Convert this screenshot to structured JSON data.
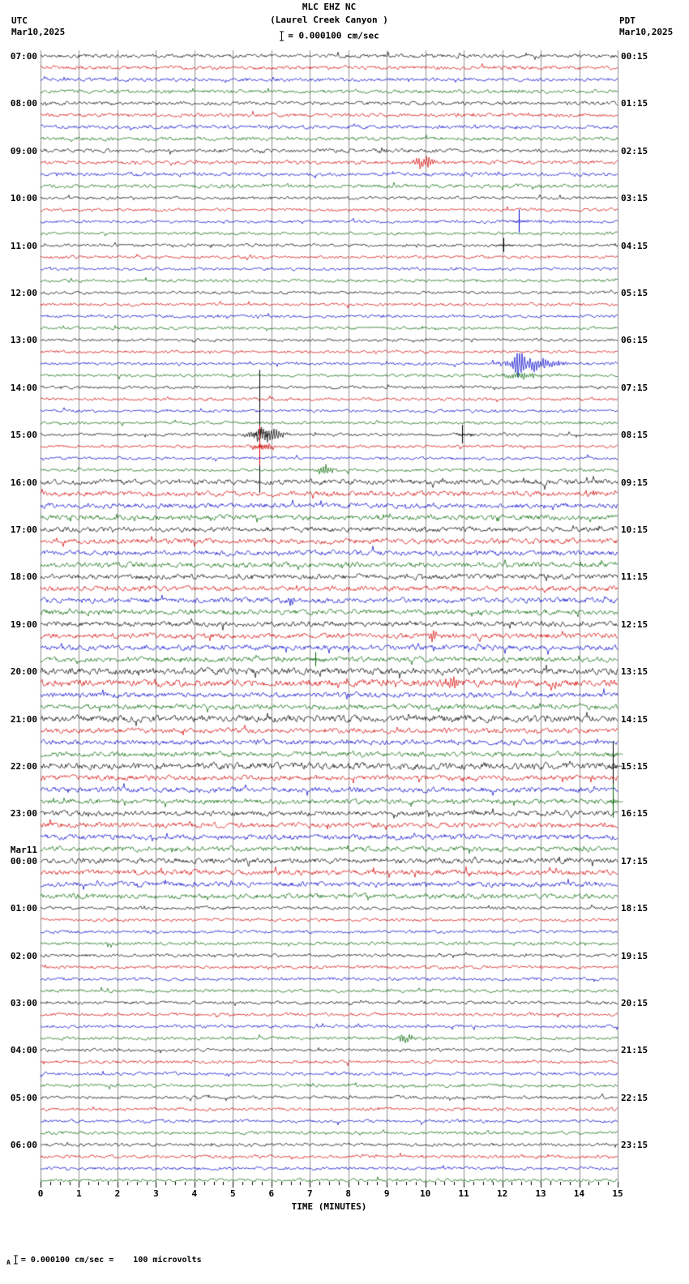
{
  "header": {
    "title": "MLC EHZ NC",
    "subtitle": "(Laurel Creek Canyon )",
    "scale_label": "= 0.000100 cm/sec",
    "left_tz": "UTC",
    "left_date": "Mar10,2025",
    "right_tz": "PDT",
    "right_date": "Mar10,2025"
  },
  "footer": {
    "note": "= 0.000100 cm/sec =    100 microvolts"
  },
  "x_axis": {
    "label": "TIME (MINUTES)",
    "ticks": [
      "0",
      "1",
      "2",
      "3",
      "4",
      "5",
      "6",
      "7",
      "8",
      "9",
      "10",
      "11",
      "12",
      "13",
      "14",
      "15"
    ]
  },
  "chart_data": {
    "type": "line",
    "subtype": "helicorder-seismogram",
    "station": "MLC EHZ NC",
    "station_name": "Laurel Creek Canyon",
    "rows": 96,
    "minutes_per_row": 15,
    "trace_colors": [
      "#000000",
      "#d40000",
      "#0000cc",
      "#006600"
    ],
    "grid_color": "#909090",
    "left_labels": [
      {
        "row": 0,
        "text": "07:00"
      },
      {
        "row": 4,
        "text": "08:00"
      },
      {
        "row": 8,
        "text": "09:00"
      },
      {
        "row": 12,
        "text": "10:00"
      },
      {
        "row": 16,
        "text": "11:00"
      },
      {
        "row": 20,
        "text": "12:00"
      },
      {
        "row": 24,
        "text": "13:00"
      },
      {
        "row": 28,
        "text": "14:00"
      },
      {
        "row": 32,
        "text": "15:00"
      },
      {
        "row": 36,
        "text": "16:00"
      },
      {
        "row": 40,
        "text": "17:00"
      },
      {
        "row": 44,
        "text": "18:00"
      },
      {
        "row": 48,
        "text": "19:00"
      },
      {
        "row": 52,
        "text": "20:00"
      },
      {
        "row": 56,
        "text": "21:00"
      },
      {
        "row": 60,
        "text": "22:00"
      },
      {
        "row": 64,
        "text": "23:00"
      },
      {
        "row": 68,
        "text": "00:00"
      },
      {
        "row": 72,
        "text": "01:00"
      },
      {
        "row": 76,
        "text": "02:00"
      },
      {
        "row": 80,
        "text": "03:00"
      },
      {
        "row": 84,
        "text": "04:00"
      },
      {
        "row": 88,
        "text": "05:00"
      },
      {
        "row": 92,
        "text": "06:00"
      }
    ],
    "date_break": {
      "row": 68,
      "text": "Mar11"
    },
    "right_labels": [
      {
        "row": 0,
        "text": "00:15"
      },
      {
        "row": 4,
        "text": "01:15"
      },
      {
        "row": 8,
        "text": "02:15"
      },
      {
        "row": 12,
        "text": "03:15"
      },
      {
        "row": 16,
        "text": "04:15"
      },
      {
        "row": 20,
        "text": "05:15"
      },
      {
        "row": 24,
        "text": "06:15"
      },
      {
        "row": 28,
        "text": "07:15"
      },
      {
        "row": 32,
        "text": "08:15"
      },
      {
        "row": 36,
        "text": "09:15"
      },
      {
        "row": 40,
        "text": "10:15"
      },
      {
        "row": 44,
        "text": "11:15"
      },
      {
        "row": 48,
        "text": "12:15"
      },
      {
        "row": 52,
        "text": "13:15"
      },
      {
        "row": 56,
        "text": "14:15"
      },
      {
        "row": 60,
        "text": "15:15"
      },
      {
        "row": 64,
        "text": "16:15"
      },
      {
        "row": 68,
        "text": "17:15"
      },
      {
        "row": 72,
        "text": "18:15"
      },
      {
        "row": 76,
        "text": "19:15"
      },
      {
        "row": 80,
        "text": "20:15"
      },
      {
        "row": 84,
        "text": "21:15"
      },
      {
        "row": 88,
        "text": "22:15"
      },
      {
        "row": 92,
        "text": "23:15"
      }
    ],
    "events": [
      {
        "row": 8,
        "t": 8.85,
        "amp": 4,
        "w": 0.08,
        "kind": "burst"
      },
      {
        "row": 9,
        "t": 9.95,
        "amp": 9,
        "w": 0.22,
        "kind": "burst"
      },
      {
        "row": 14,
        "t": 12.43,
        "amp": 15,
        "kind": "spike"
      },
      {
        "row": 16,
        "t": 12.02,
        "amp": 9,
        "kind": "spike"
      },
      {
        "row": 26,
        "t": 12.43,
        "amp": 24,
        "w": 0.12,
        "kind": "burst"
      },
      {
        "row": 26,
        "t": 12.78,
        "amp": 9,
        "w": 0.45,
        "kind": "burst"
      },
      {
        "row": 27,
        "t": 12.5,
        "amp": 5,
        "w": 0.3,
        "kind": "burst"
      },
      {
        "row": 32,
        "t": 5.69,
        "amp": 80,
        "kind": "spike"
      },
      {
        "row": 32,
        "t": 5.85,
        "amp": 11,
        "w": 0.3,
        "kind": "burst"
      },
      {
        "row": 32,
        "t": 10.95,
        "amp": 12,
        "kind": "spike"
      },
      {
        "row": 33,
        "t": 5.69,
        "amp": 26,
        "kind": "spike"
      },
      {
        "row": 33,
        "t": 5.8,
        "amp": 5,
        "w": 0.2,
        "kind": "burst"
      },
      {
        "row": 35,
        "t": 7.4,
        "amp": 7,
        "w": 0.15,
        "kind": "burst"
      },
      {
        "row": 46,
        "t": 6.5,
        "amp": 6,
        "w": 0.08,
        "kind": "burst"
      },
      {
        "row": 49,
        "t": 10.2,
        "amp": 7,
        "w": 0.07,
        "kind": "burst"
      },
      {
        "row": 51,
        "t": 7.15,
        "amp": 9,
        "kind": "spike"
      },
      {
        "row": 53,
        "t": 10.72,
        "amp": 10,
        "w": 0.14,
        "kind": "burst"
      },
      {
        "row": 59,
        "t": 14.88,
        "amp": 16,
        "kind": "spike"
      },
      {
        "row": 60,
        "t": 14.88,
        "amp": 28,
        "kind": "spike"
      },
      {
        "row": 63,
        "t": 14.88,
        "amp": 22,
        "kind": "spike"
      },
      {
        "row": 83,
        "t": 9.5,
        "amp": 6,
        "w": 0.15,
        "kind": "burst"
      }
    ]
  }
}
